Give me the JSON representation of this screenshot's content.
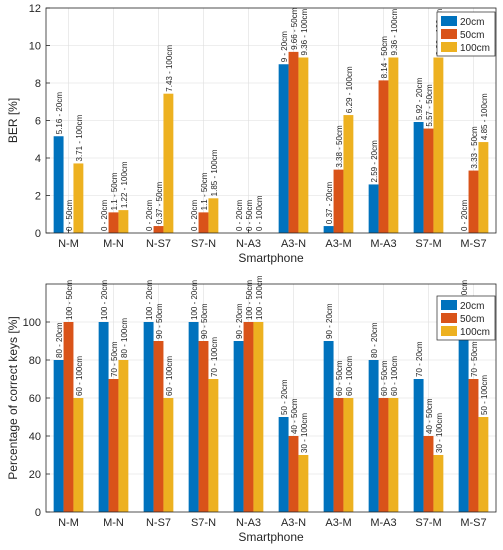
{
  "chart_data": [
    {
      "type": "bar",
      "categories": [
        "N-M",
        "M-N",
        "N-S7",
        "S7-N",
        "N-A3",
        "A3-N",
        "A3-M",
        "M-A3",
        "S7-M",
        "M-S7"
      ],
      "series": [
        {
          "name": "20cm",
          "color": "#0072BD",
          "values": [
            5.16,
            0,
            0,
            0,
            0,
            9,
            0.37,
            2.59,
            5.92,
            0
          ],
          "labels": [
            "5.16 - 20cm",
            "0 - 20cm",
            "0 - 20cm",
            "0 - 20cm",
            "0 - 20cm",
            "9 - 20cm",
            "0.37 - 20cm",
            "2.59 - 20cm",
            "5.92 - 20cm",
            "0 - 20cm"
          ]
        },
        {
          "name": "50cm",
          "color": "#D95319",
          "values": [
            0,
            1.1,
            0.37,
            1.1,
            0,
            9.66,
            3.38,
            8.14,
            5.57,
            3.33
          ],
          "labels": [
            "0 - 50cm",
            "1.1 - 50cm",
            "0.37 - 50cm",
            "1.1 - 50cm",
            "0 - 50cm",
            "9.66 - 50cm",
            "3.38 - 50cm",
            "8.14 - 50cm",
            "5.57 - 50cm",
            "3.33 - 50cm"
          ]
        },
        {
          "name": "100cm",
          "color": "#EDB120",
          "values": [
            3.71,
            1.22,
            7.43,
            1.85,
            0,
            9.36,
            6.29,
            9.36,
            9.36,
            4.85
          ],
          "labels": [
            "3.71 - 100cm",
            "1.22 - 100cm",
            "7.43 - 100cm",
            "1.85 - 100cm",
            "0 - 100cm",
            "9.36 - 100cm",
            "6.29 - 100cm",
            "9.36 - 100cm",
            "9.36 - 100cm",
            "4.85 - 100cm"
          ]
        }
      ],
      "xlabel": "Smartphone",
      "ylabel": "BER [%]",
      "ylim": [
        0,
        12
      ],
      "yticks": [
        "0",
        "2",
        "4",
        "6",
        "8",
        "10",
        "12"
      ],
      "grid": true,
      "legend": "top-right"
    },
    {
      "type": "bar",
      "categories": [
        "N-M",
        "M-N",
        "N-S7",
        "S7-N",
        "N-A3",
        "A3-N",
        "A3-M",
        "M-A3",
        "S7-M",
        "M-S7"
      ],
      "series": [
        {
          "name": "20cm",
          "color": "#0072BD",
          "values": [
            80,
            100,
            100,
            100,
            90,
            50,
            90,
            80,
            70,
            100
          ],
          "labels": [
            "80 - 20cm",
            "100 - 20cm",
            "100 - 20cm",
            "100 - 20cm",
            "90 - 20cm",
            "50 - 20cm",
            "90 - 20cm",
            "80 - 20cm",
            "70 - 20cm",
            "100 - 20cm"
          ]
        },
        {
          "name": "50cm",
          "color": "#D95319",
          "values": [
            100,
            70,
            90,
            90,
            100,
            40,
            60,
            60,
            40,
            70
          ],
          "labels": [
            "100 - 50cm",
            "70 - 50cm",
            "90 - 50cm",
            "90 - 50cm",
            "100 - 50cm",
            "40 - 50cm",
            "60 - 50cm",
            "60 - 50cm",
            "40 - 50cm",
            "70 - 50cm"
          ]
        },
        {
          "name": "100cm",
          "color": "#EDB120",
          "values": [
            60,
            80,
            60,
            70,
            100,
            30,
            60,
            60,
            30,
            50
          ],
          "labels": [
            "60 - 100cm",
            "80 - 100cm",
            "60 - 100cm",
            "70 - 100cm",
            "100 - 100cm",
            "30 - 100cm",
            "60 - 100cm",
            "60 - 100cm",
            "30 - 100cm",
            "50 - 100cm"
          ]
        }
      ],
      "xlabel": "Smartphone",
      "ylabel": "Percentage of correct keys [%]",
      "ylim": [
        0,
        120
      ],
      "yticks": [
        "0",
        "20",
        "40",
        "60",
        "80",
        "100"
      ],
      "grid": true,
      "legend": "top-right"
    }
  ]
}
